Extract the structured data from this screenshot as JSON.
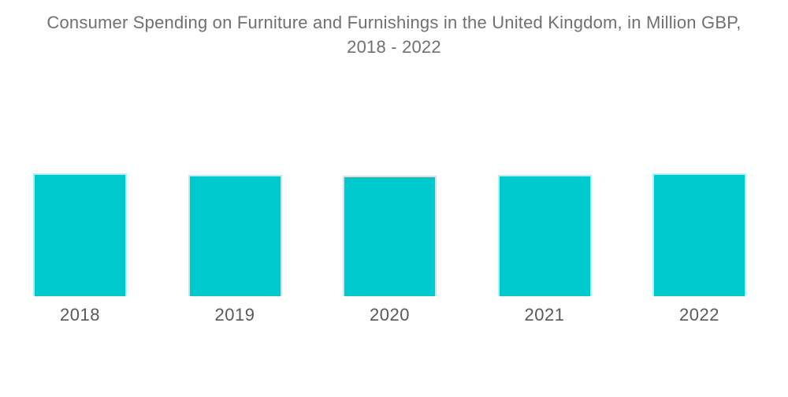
{
  "header": {
    "title_line1": "Consumer Spending on Furniture and Furnishings in the United Kingdom, in Million GBP,",
    "title_line2": "2018 - 2022"
  },
  "chart_data": {
    "type": "bar",
    "title": "Consumer Spending on Furniture and Furnishings in the United Kingdom, in Million GBP, 2018 - 2022",
    "categories": [
      "2018",
      "2019",
      "2020",
      "2021",
      "2022"
    ],
    "values": [
      156,
      154,
      153,
      154,
      156
    ],
    "values_unit": "relative bar height in pixels; chart displays no numeric axis, gridlines, or data labels",
    "xlabel": "",
    "ylabel": "",
    "legend_position": "none",
    "grid": false,
    "axes_visible": false,
    "bar_color": "#00C9CE",
    "bar_edge_color": "#B7EEF0",
    "label_color": "#58595B",
    "title_color": "#6E7173",
    "background": "#FFFFFF"
  }
}
